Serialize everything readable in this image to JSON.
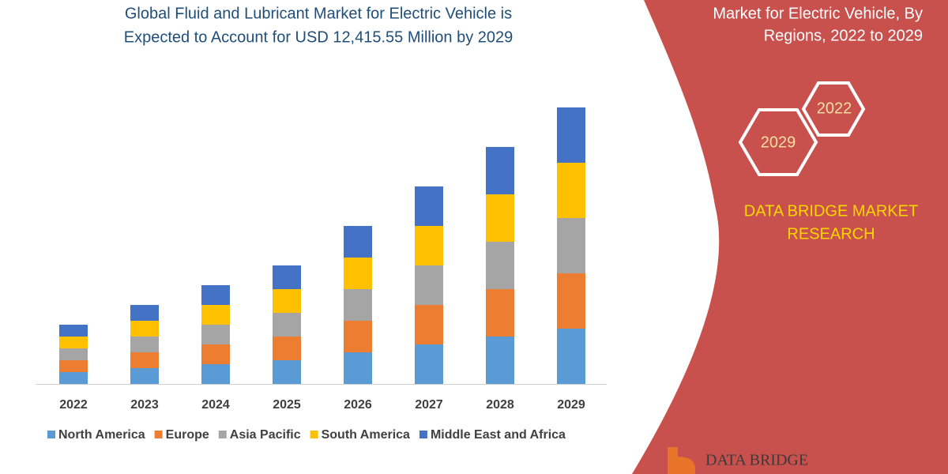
{
  "chart_data": {
    "type": "bar",
    "stacked": true,
    "title": [
      "Global Fluid and Lubricant Market for Electric Vehicle is",
      "Expected to Account for USD 12,415.55 Million by 2029"
    ],
    "categories": [
      "2022",
      "2023",
      "2024",
      "2025",
      "2026",
      "2027",
      "2028",
      "2029"
    ],
    "series": [
      {
        "name": "North America",
        "color": "#5b9bd5",
        "values": [
          15,
          20,
          25,
          30,
          40,
          50,
          60,
          70
        ]
      },
      {
        "name": "Europe",
        "color": "#ed7d31",
        "values": [
          15,
          20,
          25,
          30,
          40,
          50,
          60,
          70
        ]
      },
      {
        "name": "Asia Pacific",
        "color": "#a5a5a5",
        "values": [
          15,
          20,
          25,
          30,
          40,
          50,
          60,
          70
        ]
      },
      {
        "name": "South America",
        "color": "#ffc000",
        "values": [
          15,
          20,
          25,
          30,
          40,
          50,
          60,
          70
        ]
      },
      {
        "name": "Middle East and Africa",
        "color": "#4472c4",
        "values": [
          15,
          20,
          25,
          30,
          40,
          50,
          60,
          70
        ]
      }
    ]
  },
  "panel": {
    "heading": [
      "Market for Electric Vehicle, By",
      "Regions, 2022 to 2029"
    ],
    "hexagons": [
      "2022",
      "2029"
    ],
    "brand": [
      "DATA BRIDGE MARKET",
      "RESEARCH"
    ],
    "logo": "DATA BRIDGE"
  }
}
